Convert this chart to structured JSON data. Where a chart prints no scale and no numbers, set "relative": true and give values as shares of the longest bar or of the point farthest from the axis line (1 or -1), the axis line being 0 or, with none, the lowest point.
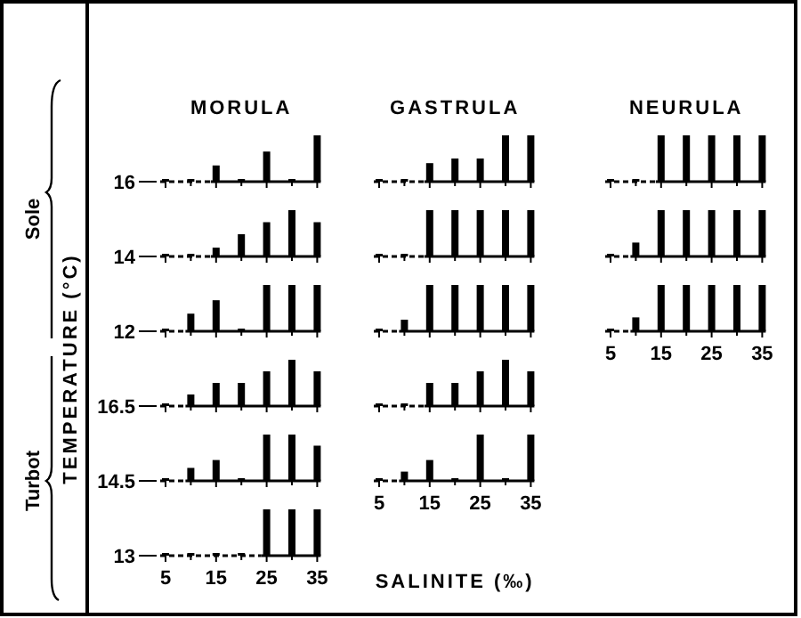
{
  "chart_data": [
    {
      "type": "bar",
      "relative": true,
      "title": "MORULA",
      "ylabel": "16",
      "tick_labels": false,
      "categories": [
        "5",
        null,
        "15",
        null,
        "25",
        null,
        "35"
      ],
      "values": [
        0,
        0,
        0.35,
        0,
        0.65,
        0,
        1
      ],
      "color": "#000000",
      "annotations": [
        "TEMPERATURE (°C)",
        "Sole",
        "Turbot"
      ]
    },
    {
      "type": "bar",
      "relative": true,
      "ylabel": "14",
      "tick_labels": false,
      "categories": [
        "5",
        null,
        "15",
        null,
        "25",
        null,
        "35"
      ],
      "values": [
        0,
        0,
        0.19,
        0.48,
        0.74,
        1,
        0.74
      ],
      "color": "#000000"
    },
    {
      "type": "bar",
      "relative": true,
      "ylabel": "12",
      "tick_labels": false,
      "categories": [
        "5",
        null,
        "15",
        null,
        "25",
        null,
        "35"
      ],
      "values": [
        0,
        0.38,
        0.67,
        0,
        1,
        1,
        1
      ],
      "color": "#000000"
    },
    {
      "type": "bar",
      "relative": true,
      "ylabel": "16.5",
      "tick_labels": false,
      "categories": [
        "5",
        null,
        "15",
        null,
        "25",
        null,
        "35"
      ],
      "values": [
        0,
        0.25,
        0.5,
        0.5,
        0.75,
        1,
        0.75
      ],
      "color": "#000000"
    },
    {
      "type": "bar",
      "relative": true,
      "ylabel": "14.5",
      "tick_labels": false,
      "categories": [
        "5",
        null,
        "15",
        null,
        "25",
        null,
        "35"
      ],
      "values": [
        0,
        0.28,
        0.45,
        0,
        1,
        1,
        0.76
      ],
      "color": "#000000"
    },
    {
      "type": "bar",
      "relative": true,
      "ylabel": "13",
      "categories": [
        "5",
        null,
        "15",
        null,
        "25",
        null,
        "35"
      ],
      "values": [
        0,
        0,
        0,
        0,
        1,
        1,
        1
      ],
      "color": "#000000"
    },
    {
      "type": "bar",
      "relative": true,
      "title": "GASTRULA",
      "tick_labels": false,
      "categories": [
        "5",
        null,
        "15",
        null,
        "25",
        null,
        "35"
      ],
      "values": [
        0,
        0,
        0.4,
        0.5,
        0.5,
        1,
        1
      ],
      "color": "#000000"
    },
    {
      "type": "bar",
      "relative": true,
      "tick_labels": false,
      "categories": [
        "5",
        null,
        "15",
        null,
        "25",
        null,
        "35"
      ],
      "values": [
        0,
        0,
        1,
        1,
        1,
        1,
        1
      ],
      "color": "#000000"
    },
    {
      "type": "bar",
      "relative": true,
      "tick_labels": false,
      "categories": [
        "5",
        null,
        "15",
        null,
        "25",
        null,
        "35"
      ],
      "values": [
        0,
        0.25,
        1,
        1,
        1,
        1,
        1
      ],
      "color": "#000000"
    },
    {
      "type": "bar",
      "relative": true,
      "tick_labels": false,
      "categories": [
        "5",
        null,
        "15",
        null,
        "25",
        null,
        "35"
      ],
      "values": [
        0,
        0,
        0.5,
        0.5,
        0.75,
        1,
        0.75
      ],
      "color": "#000000"
    },
    {
      "type": "bar",
      "relative": true,
      "xlabel": "SALINITE (‰)",
      "categories": [
        "5",
        null,
        "15",
        null,
        "25",
        null,
        "35"
      ],
      "values": [
        0,
        0.2,
        0.45,
        0,
        1,
        0,
        1
      ],
      "color": "#000000"
    },
    {
      "type": "bar",
      "relative": true,
      "title": "NEURULA",
      "tick_labels": false,
      "categories": [
        "5",
        null,
        "15",
        null,
        "25",
        null,
        "35"
      ],
      "values": [
        0,
        0,
        1,
        1,
        1,
        1,
        1
      ],
      "color": "#000000"
    },
    {
      "type": "bar",
      "relative": true,
      "tick_labels": false,
      "categories": [
        "5",
        null,
        "15",
        null,
        "25",
        null,
        "35"
      ],
      "values": [
        0,
        0.3,
        1,
        1,
        1,
        1,
        1
      ],
      "color": "#000000"
    },
    {
      "type": "bar",
      "relative": true,
      "categories": [
        "5",
        null,
        "15",
        null,
        "25",
        null,
        "35"
      ],
      "values": [
        0,
        0.3,
        1,
        1,
        1,
        1,
        1
      ],
      "color": "#000000"
    }
  ]
}
